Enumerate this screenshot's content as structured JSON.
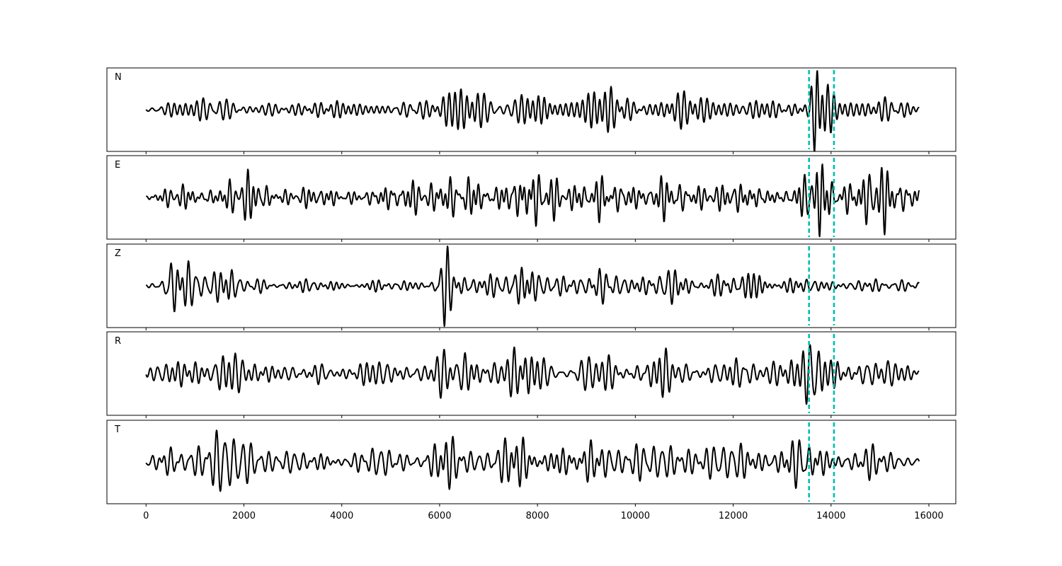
{
  "chart_data": {
    "type": "line",
    "title": "",
    "xlabel": "",
    "ylabel": "",
    "xlim": [
      -800,
      16550
    ],
    "x_ticks": [
      0,
      2000,
      4000,
      6000,
      8000,
      10000,
      12000,
      14000,
      16000
    ],
    "x_tick_labels": [
      "0",
      "2000",
      "4000",
      "6000",
      "8000",
      "10000",
      "12000",
      "14000",
      "16000"
    ],
    "grid": false,
    "legend": "none",
    "line_color": "#000000",
    "marker_color": "#00c0b0",
    "marker_lines": [
      13550,
      14060
    ],
    "x_range": [
      0,
      15800
    ],
    "panels": [
      {
        "label": "N",
        "envelope": [
          [
            0,
            0.15
          ],
          [
            600,
            0.35
          ],
          [
            1500,
            0.6
          ],
          [
            2000,
            0.3
          ],
          [
            3000,
            0.2
          ],
          [
            4000,
            0.2
          ],
          [
            5000,
            0.25
          ],
          [
            6000,
            0.4
          ],
          [
            6100,
            0.6
          ],
          [
            7000,
            0.4
          ],
          [
            7700,
            0.55
          ],
          [
            8500,
            0.35
          ],
          [
            9200,
            0.45
          ],
          [
            10000,
            0.35
          ],
          [
            11000,
            0.35
          ],
          [
            12000,
            0.35
          ],
          [
            13000,
            0.4
          ],
          [
            13550,
            0.15
          ],
          [
            13700,
            1.0
          ],
          [
            13900,
            0.5
          ],
          [
            14100,
            0.25
          ],
          [
            15000,
            0.3
          ],
          [
            15800,
            0.2
          ]
        ]
      },
      {
        "label": "E",
        "envelope": [
          [
            0,
            0.15
          ],
          [
            1000,
            0.25
          ],
          [
            1700,
            0.5
          ],
          [
            3000,
            0.25
          ],
          [
            4000,
            0.2
          ],
          [
            5000,
            0.3
          ],
          [
            6000,
            0.6
          ],
          [
            6200,
            0.5
          ],
          [
            7000,
            0.45
          ],
          [
            7600,
            0.7
          ],
          [
            8500,
            0.5
          ],
          [
            9500,
            0.4
          ],
          [
            10500,
            0.5
          ],
          [
            11000,
            0.35
          ],
          [
            12000,
            0.35
          ],
          [
            13000,
            0.3
          ],
          [
            13500,
            0.45
          ],
          [
            13700,
            0.85
          ],
          [
            14100,
            0.5
          ],
          [
            14600,
            0.8
          ],
          [
            15000,
            0.6
          ],
          [
            15800,
            0.5
          ]
        ]
      },
      {
        "label": "Z",
        "envelope": [
          [
            0,
            0.03
          ],
          [
            300,
            0.1
          ],
          [
            500,
            0.7
          ],
          [
            700,
            0.5
          ],
          [
            1700,
            0.55
          ],
          [
            2000,
            0.15
          ],
          [
            3000,
            0.15
          ],
          [
            4000,
            0.15
          ],
          [
            5000,
            0.15
          ],
          [
            5800,
            0.2
          ],
          [
            6100,
            0.95
          ],
          [
            6300,
            0.3
          ],
          [
            7000,
            0.4
          ],
          [
            7500,
            0.45
          ],
          [
            8200,
            0.3
          ],
          [
            9500,
            0.3
          ],
          [
            10500,
            0.35
          ],
          [
            11500,
            0.3
          ],
          [
            12800,
            0.5
          ],
          [
            13000,
            0.25
          ],
          [
            14000,
            0.15
          ],
          [
            15000,
            0.15
          ],
          [
            15800,
            0.15
          ]
        ]
      },
      {
        "label": "R",
        "envelope": [
          [
            0,
            0.15
          ],
          [
            700,
            0.35
          ],
          [
            1500,
            0.55
          ],
          [
            2000,
            0.35
          ],
          [
            3000,
            0.25
          ],
          [
            4000,
            0.25
          ],
          [
            5000,
            0.3
          ],
          [
            6000,
            0.5
          ],
          [
            6200,
            0.55
          ],
          [
            7000,
            0.45
          ],
          [
            7700,
            0.5
          ],
          [
            8500,
            0.4
          ],
          [
            9500,
            0.45
          ],
          [
            10500,
            0.4
          ],
          [
            12000,
            0.35
          ],
          [
            12700,
            0.45
          ],
          [
            13300,
            0.4
          ],
          [
            13700,
            0.9
          ],
          [
            14000,
            0.45
          ],
          [
            14500,
            0.45
          ],
          [
            15000,
            0.4
          ],
          [
            15800,
            0.2
          ]
        ]
      },
      {
        "label": "T",
        "envelope": [
          [
            0,
            0.1
          ],
          [
            700,
            0.45
          ],
          [
            1500,
            0.7
          ],
          [
            1800,
            0.5
          ],
          [
            2500,
            0.3
          ],
          [
            3500,
            0.25
          ],
          [
            4500,
            0.25
          ],
          [
            5500,
            0.3
          ],
          [
            6100,
            0.65
          ],
          [
            6500,
            0.45
          ],
          [
            7200,
            0.55
          ],
          [
            7700,
            0.7
          ],
          [
            8600,
            0.65
          ],
          [
            9500,
            0.45
          ],
          [
            10500,
            0.45
          ],
          [
            11500,
            0.45
          ],
          [
            12500,
            0.45
          ],
          [
            13300,
            0.55
          ],
          [
            13700,
            0.75
          ],
          [
            14000,
            0.4
          ],
          [
            15000,
            0.35
          ],
          [
            15800,
            0.15
          ]
        ]
      }
    ]
  }
}
